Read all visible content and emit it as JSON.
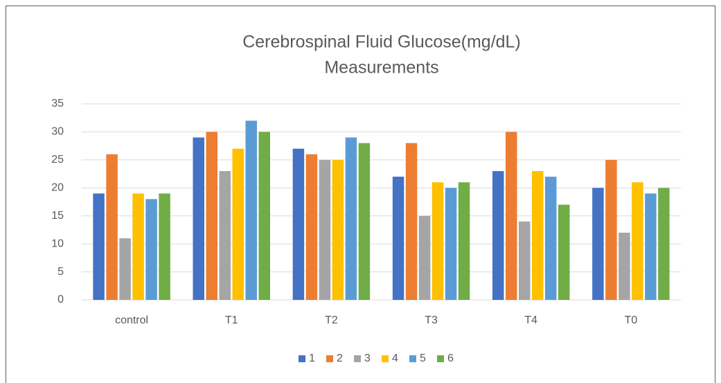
{
  "chart_data": {
    "type": "bar",
    "title": [
      "Cerebrospinal Fluid Glucose(mg/dL)",
      "Measurements"
    ],
    "categories": [
      "control",
      "T1",
      "T2",
      "T3",
      "T4",
      "T0"
    ],
    "series": [
      {
        "name": "1",
        "color": "#4472c4",
        "values": [
          19,
          29,
          27,
          22,
          23,
          20
        ]
      },
      {
        "name": "2",
        "color": "#ed7d31",
        "values": [
          26,
          30,
          26,
          28,
          30,
          25
        ]
      },
      {
        "name": "3",
        "color": "#a5a5a5",
        "values": [
          11,
          23,
          25,
          15,
          14,
          12
        ]
      },
      {
        "name": "4",
        "color": "#ffc000",
        "values": [
          19,
          27,
          25,
          21,
          23,
          21
        ]
      },
      {
        "name": "5",
        "color": "#5b9bd5",
        "values": [
          18,
          32,
          29,
          20,
          22,
          19
        ]
      },
      {
        "name": "6",
        "color": "#70ad47",
        "values": [
          19,
          30,
          28,
          21,
          17,
          20
        ]
      }
    ],
    "ylim": [
      0,
      35
    ],
    "yticks": [
      0,
      5,
      10,
      15,
      20,
      25,
      30,
      35
    ],
    "grid": true,
    "legend": "bottom"
  }
}
